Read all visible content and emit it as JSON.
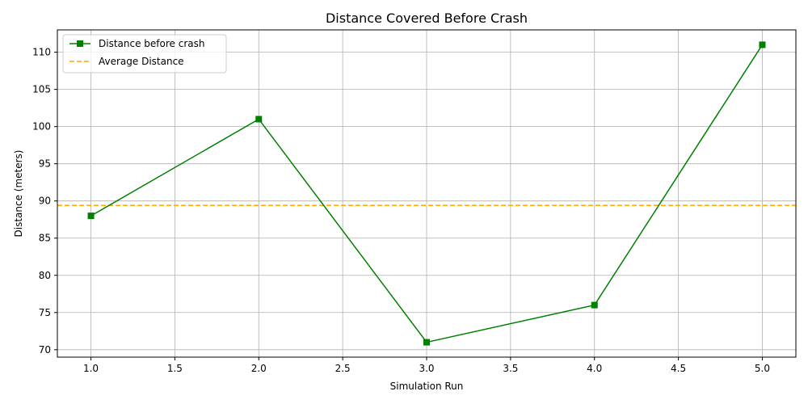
{
  "chart_data": {
    "type": "line",
    "title": "Distance Covered Before Crash",
    "xlabel": "Simulation Run",
    "ylabel": "Distance (meters)",
    "xlim": [
      0.8,
      5.2
    ],
    "ylim": [
      69,
      113
    ],
    "xticks": [
      1.0,
      1.5,
      2.0,
      2.5,
      3.0,
      3.5,
      4.0,
      4.5,
      5.0
    ],
    "yticks": [
      70,
      75,
      80,
      85,
      90,
      95,
      100,
      105,
      110
    ],
    "grid": true,
    "legend_position": "top-left",
    "series": [
      {
        "name": "Distance before crash",
        "color": "#008000",
        "marker": "square",
        "line_style": "solid",
        "x": [
          1,
          2,
          3,
          4,
          5
        ],
        "y": [
          88,
          101,
          71,
          76,
          111
        ]
      }
    ],
    "reference_lines": [
      {
        "name": "Average Distance",
        "color": "#FFA500",
        "line_style": "dashed",
        "y": 89.4
      }
    ]
  }
}
